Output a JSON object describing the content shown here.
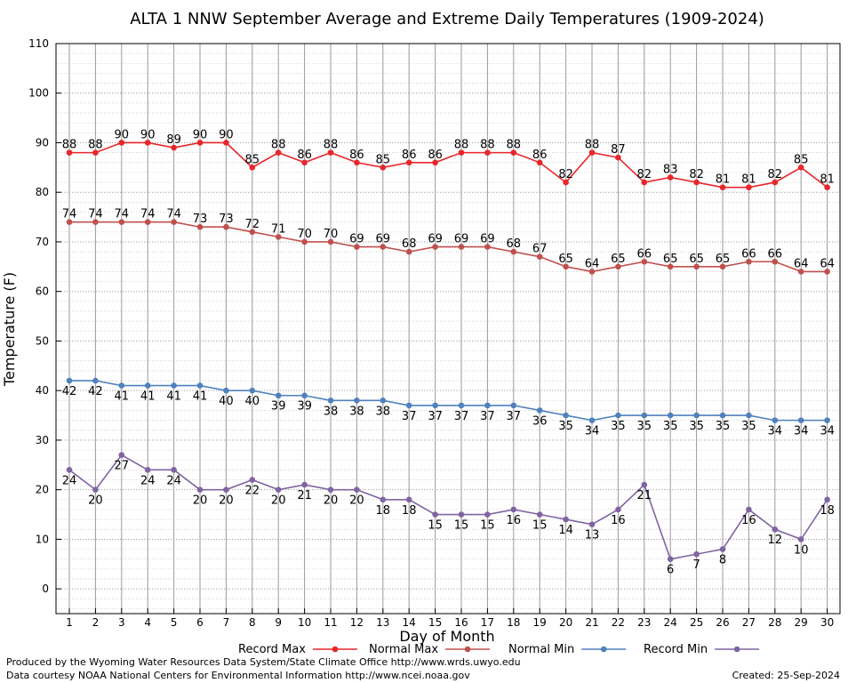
{
  "chart_data": {
    "type": "line",
    "title": "ALTA 1 NNW September Average and Extreme Daily Temperatures (1909-2024)",
    "xlabel": "Day of Month",
    "ylabel": "Temperature (F)",
    "ylim": [
      -5,
      110
    ],
    "yticks": [
      0,
      10,
      20,
      30,
      40,
      50,
      60,
      70,
      80,
      90,
      100,
      110
    ],
    "x": [
      1,
      2,
      3,
      4,
      5,
      6,
      7,
      8,
      9,
      10,
      11,
      12,
      13,
      14,
      15,
      16,
      17,
      18,
      19,
      20,
      21,
      22,
      23,
      24,
      25,
      26,
      27,
      28,
      29,
      30
    ],
    "grid": true,
    "legend_position": "bottom",
    "series": [
      {
        "name": "Record Max",
        "color": "#e8262b",
        "label_position": "above",
        "values": [
          88,
          88,
          90,
          90,
          89,
          90,
          90,
          85,
          88,
          86,
          88,
          86,
          85,
          86,
          86,
          88,
          88,
          88,
          86,
          82,
          88,
          87,
          82,
          83,
          82,
          81,
          81,
          82,
          85,
          81
        ]
      },
      {
        "name": "Normal Max",
        "color": "#c0504d",
        "label_position": "above",
        "values": [
          74,
          74,
          74,
          74,
          74,
          73,
          73,
          72,
          71,
          70,
          70,
          69,
          69,
          68,
          69,
          69,
          69,
          68,
          67,
          65,
          64,
          65,
          66,
          65,
          65,
          65,
          66,
          66,
          64,
          64
        ]
      },
      {
        "name": "Normal Min",
        "color": "#4f81bd",
        "label_position": "below",
        "values": [
          42,
          42,
          41,
          41,
          41,
          41,
          40,
          40,
          39,
          39,
          38,
          38,
          38,
          37,
          37,
          37,
          37,
          37,
          36,
          35,
          34,
          35,
          35,
          35,
          35,
          35,
          35,
          34,
          34,
          34
        ]
      },
      {
        "name": "Record Min",
        "color": "#8064a2",
        "label_position": "below",
        "values": [
          24,
          20,
          27,
          24,
          24,
          20,
          20,
          22,
          20,
          21,
          20,
          20,
          18,
          18,
          15,
          15,
          15,
          16,
          15,
          14,
          13,
          16,
          21,
          6,
          7,
          8,
          16,
          12,
          10,
          18
        ]
      }
    ]
  },
  "footer": {
    "credit_line_1": "Produced by the Wyoming Water Resources Data System/State Climate Office http://www.wrds.uwyo.edu",
    "credit_line_2": "Data courtesy NOAA National Centers for Environmental Information http://www.ncei.noaa.gov",
    "created": "Created:  25-Sep-2024"
  }
}
